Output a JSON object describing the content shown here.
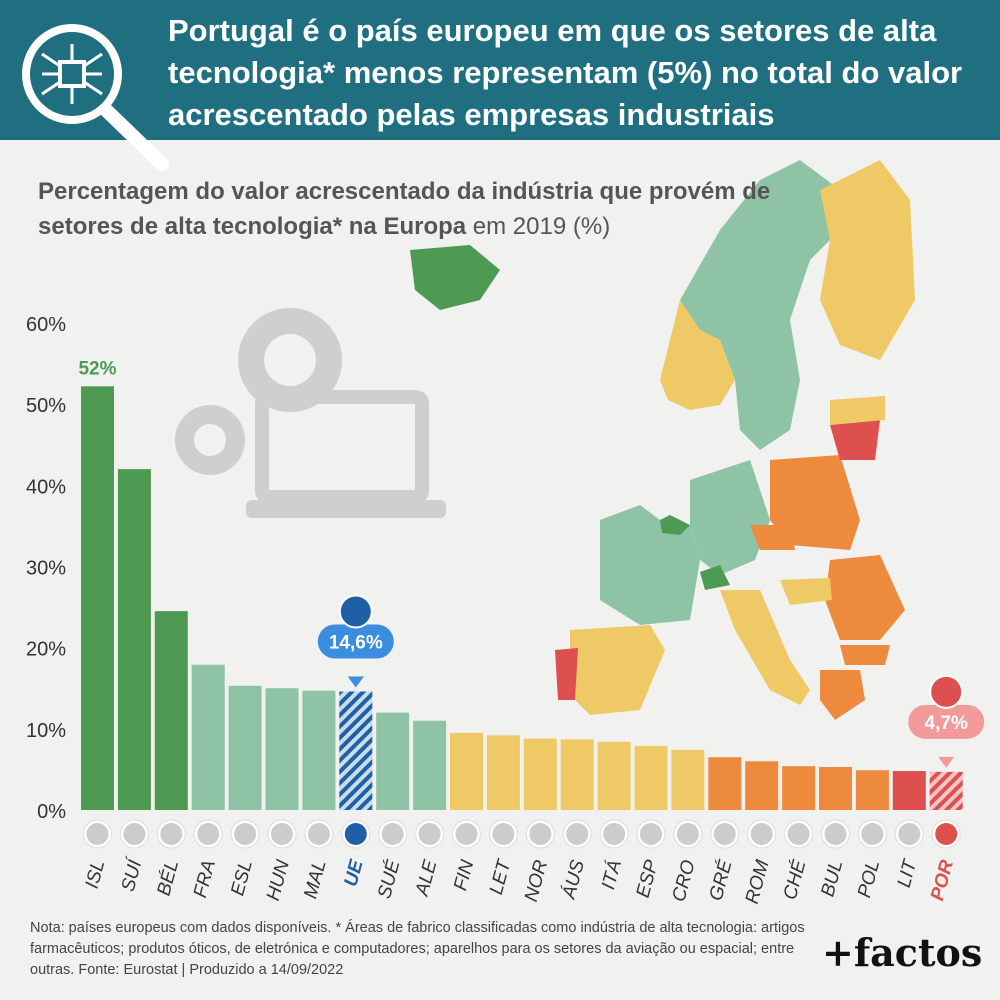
{
  "header": {
    "title": "Portugal é o país europeu em que os setores de alta tecnologia* menos representam (5%) no total do valor acrescentado pelas empresas industriais"
  },
  "subtitle": {
    "bold": "Percentagem do valor acrescentado da indústria que provém de setores de alta tecnologia* na Europa",
    "regular": " em 2019 (%)"
  },
  "chart_data": {
    "type": "bar",
    "title": "Percentagem do valor acrescentado da indústria que provém de setores de alta tecnologia* na Europa em 2019 (%)",
    "categories": [
      "ISL",
      "SUÍ",
      "BÉL",
      "FRA",
      "ESL",
      "HUN",
      "MAL",
      "UE",
      "SUÉ",
      "ALE",
      "FIN",
      "LET",
      "NOR",
      "ÁUS",
      "ITÁ",
      "ESP",
      "CRO",
      "GRÉ",
      "ROM",
      "CHÉ",
      "BUL",
      "POL",
      "LIT",
      "POR"
    ],
    "values": [
      52.2,
      42.0,
      24.5,
      17.9,
      15.3,
      15.0,
      14.7,
      14.6,
      12.0,
      11.0,
      9.5,
      9.2,
      8.8,
      8.7,
      8.4,
      7.9,
      7.4,
      6.5,
      6.0,
      5.4,
      5.3,
      4.9,
      4.8,
      4.7
    ],
    "ylim": [
      0,
      60
    ],
    "yticks": [
      "0%",
      "10%",
      "20%",
      "30%",
      "40%",
      "50%",
      "60%"
    ],
    "annotations": [
      {
        "category": "ISL",
        "label": "52%"
      },
      {
        "category": "UE",
        "label": "14,6%"
      },
      {
        "category": "POR",
        "label": "4,7%"
      }
    ],
    "colors": {
      "dark_green": "#4f9a52",
      "light_green": "#8ec3a6",
      "yellow": "#efc966",
      "orange": "#ee8a3d",
      "red": "#de4f4f",
      "eu_blue": "#1f5fa5",
      "eu_label": "#3b8de0"
    }
  },
  "footer": {
    "note": "Nota: países europeus com dados disponíveis. * Áreas de fabrico classificadas como indústria de alta tecnologia: artigos farmacêuticos; produtos óticos, de eletrónica e computadores; aparelhos para os setores da aviação ou espacial; entre outras. Fonte: Eurostat | Produzido a 14/09/2022",
    "brand": "+factos"
  }
}
